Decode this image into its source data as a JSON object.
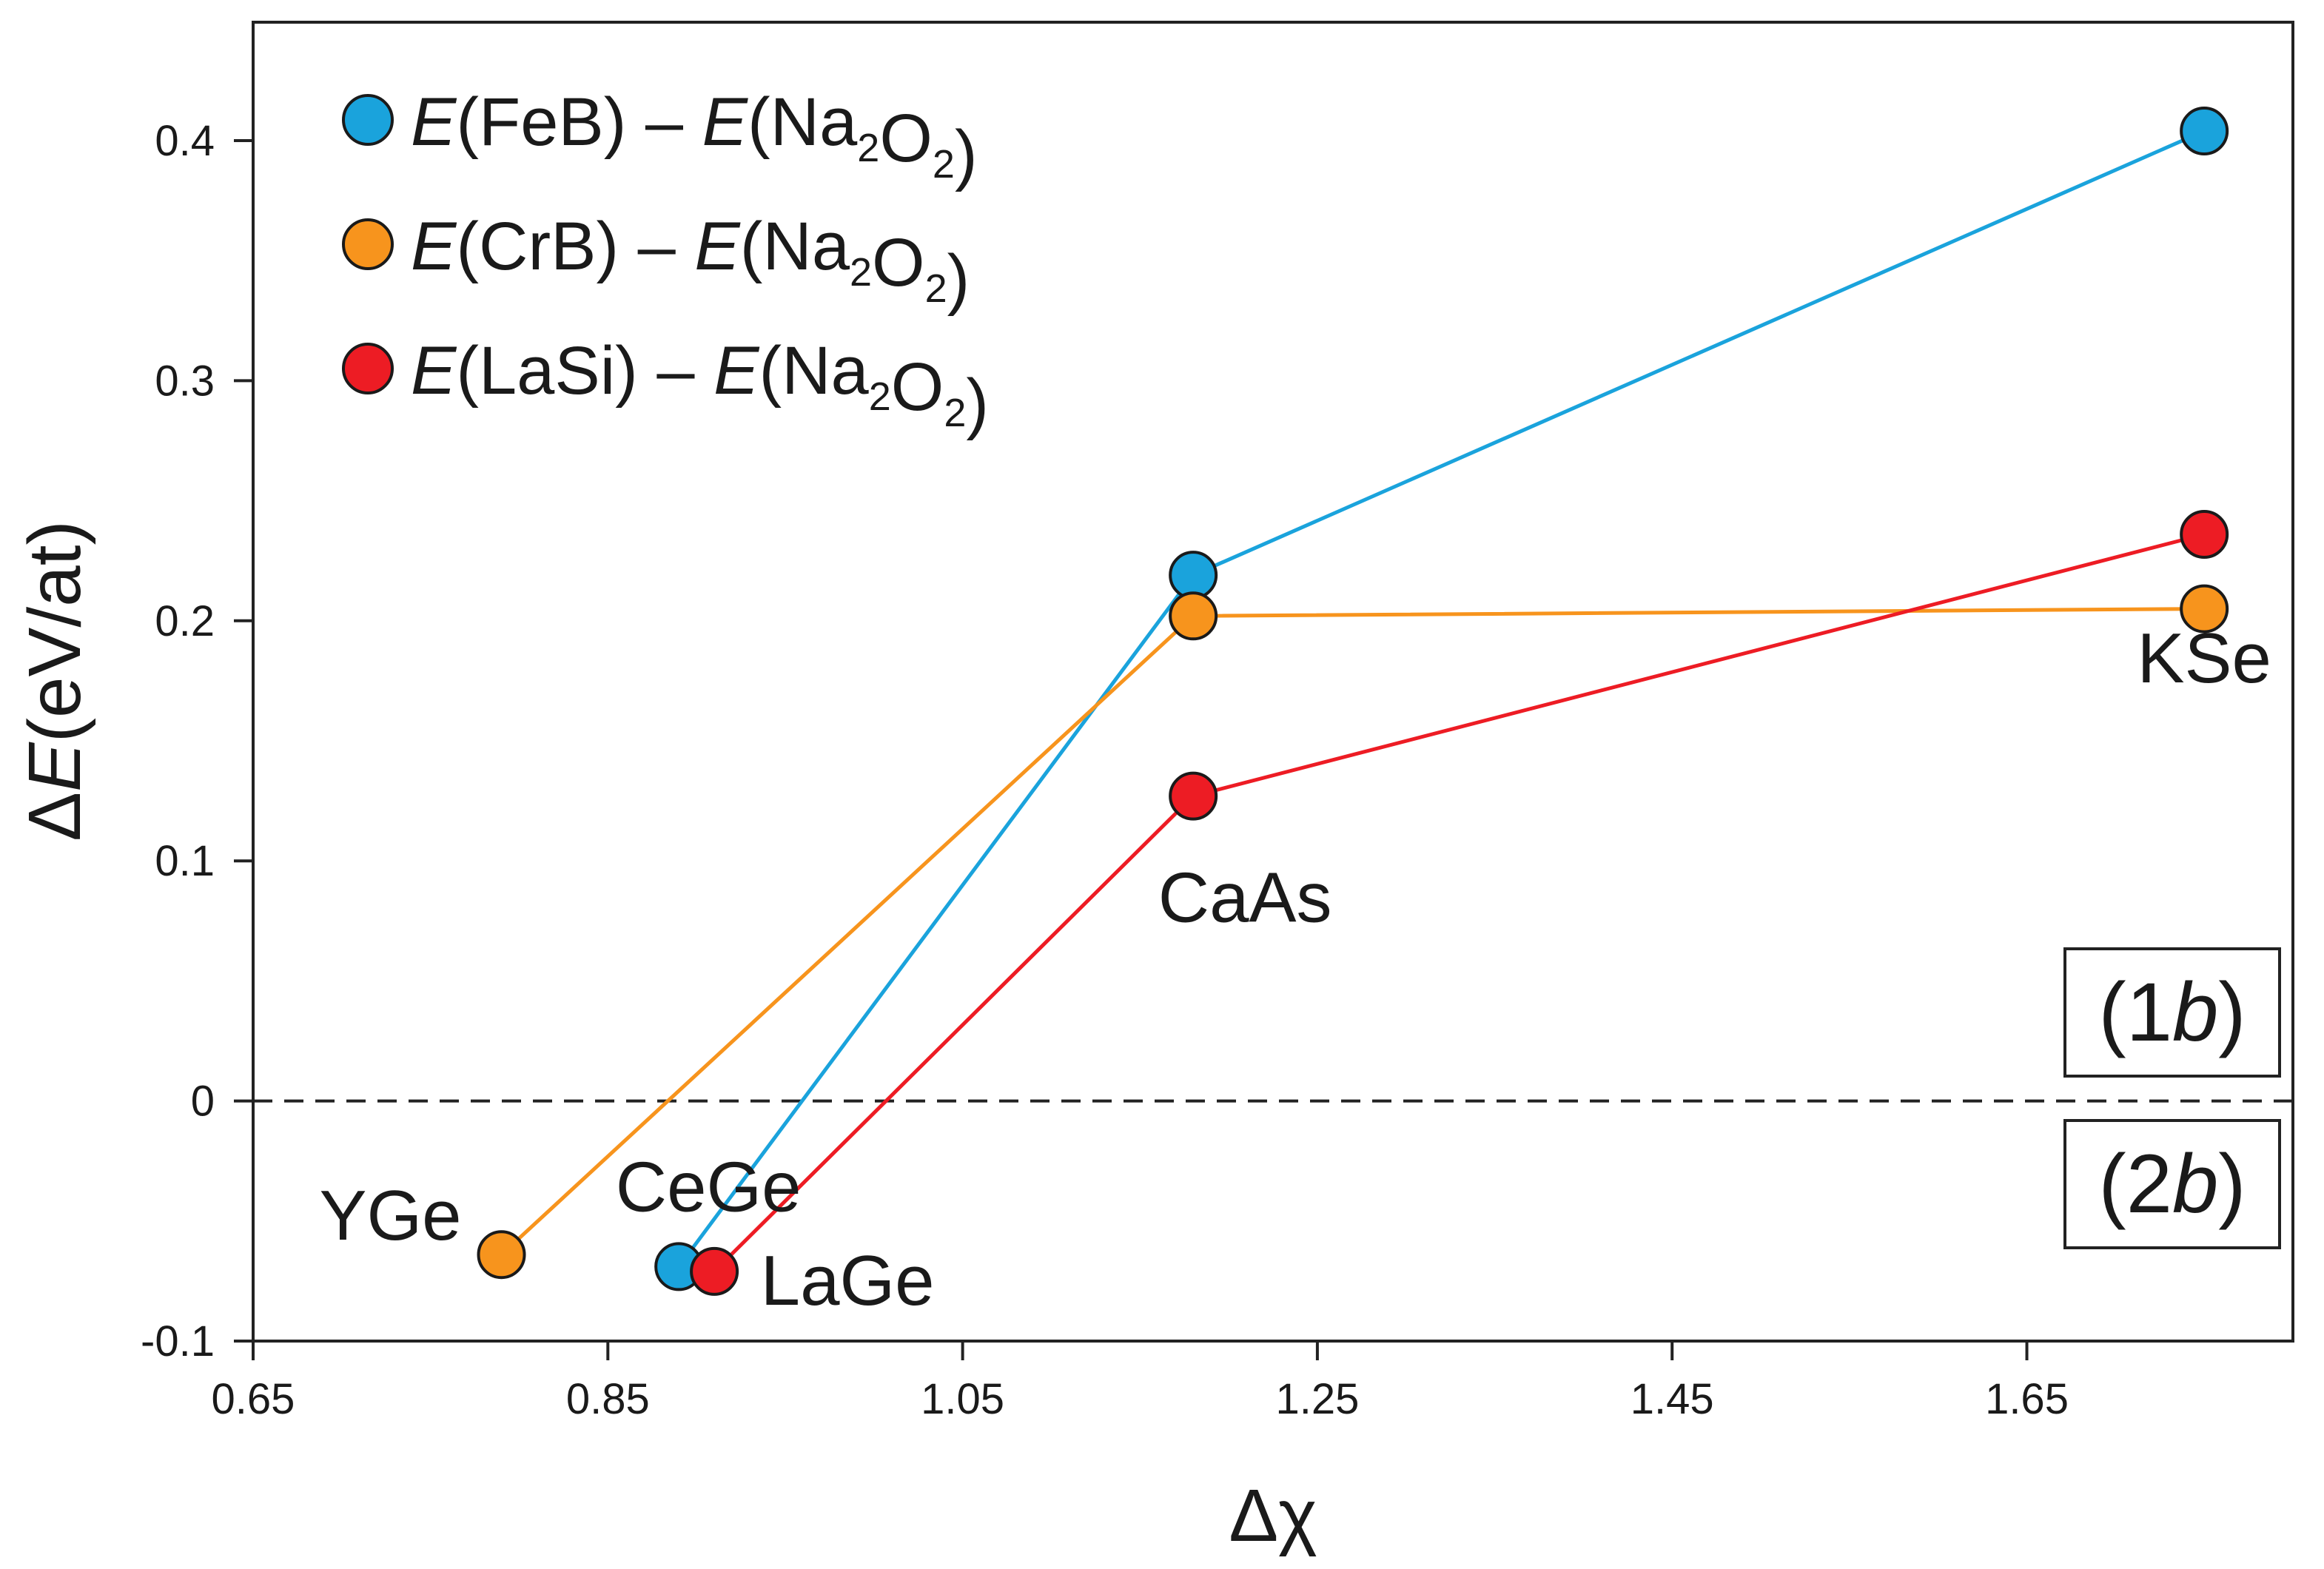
{
  "chart_data": {
    "type": "line",
    "xlabel": "Δχ",
    "ylabel": "ΔE(eV/at)",
    "xlim": [
      0.65,
      1.8
    ],
    "ylim": [
      -0.1,
      0.45
    ],
    "x_ticks": [
      0.65,
      0.85,
      1.05,
      1.25,
      1.45,
      1.65
    ],
    "x_tick_labels": [
      "0.65",
      "0.85",
      "1.05",
      "1.25",
      "1.45",
      "1.65"
    ],
    "y_ticks": [
      -0.1,
      0,
      0.1,
      0.2,
      0.3,
      0.4
    ],
    "y_tick_labels": [
      "-0.1",
      "0",
      "0.1",
      "0.2",
      "0.3",
      "0.4"
    ],
    "grid": false,
    "legend_position": "top-left",
    "reference_line": {
      "y": 0,
      "style": "dashed"
    },
    "series": [
      {
        "name": "E(FeB) – E(Na2O2)",
        "color": "#1aa3dc",
        "x": [
          0.89,
          1.18,
          1.75
        ],
        "y": [
          -0.069,
          0.219,
          0.404
        ]
      },
      {
        "name": "E(CrB) – E(Na2O2)",
        "color": "#f7941d",
        "x": [
          0.79,
          1.18,
          1.75
        ],
        "y": [
          -0.064,
          0.202,
          0.205
        ]
      },
      {
        "name": "E(LaSi) – E(Na2O2)",
        "color": "#ed1c24",
        "x": [
          0.91,
          1.18,
          1.75
        ],
        "y": [
          -0.071,
          0.127,
          0.236
        ]
      }
    ],
    "annotations": [
      {
        "text": "YGe",
        "x": 0.79,
        "y": -0.064
      },
      {
        "text": "CeGe",
        "x": 0.89,
        "y": -0.069
      },
      {
        "text": "LaGe",
        "x": 0.91,
        "y": -0.071
      },
      {
        "text": "CaAs",
        "x": 1.18,
        "y": 0.127
      },
      {
        "text": "KSe",
        "x": 1.75,
        "y": 0.236
      }
    ],
    "region_labels": [
      "(1b)",
      "(2b)"
    ]
  }
}
